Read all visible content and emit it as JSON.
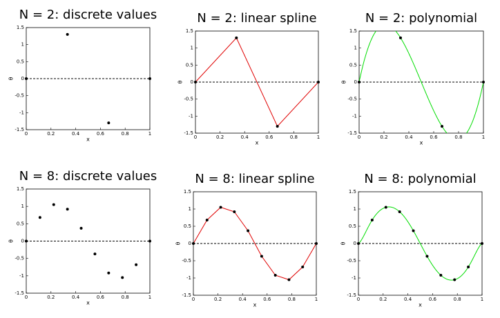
{
  "chart_data": [
    {
      "type": "scatter",
      "title": "N = 2: discrete values",
      "x": [
        0,
        0.3333,
        0.6667,
        1
      ],
      "values": [
        0,
        1.3,
        -1.3,
        0
      ],
      "color": "#000000",
      "xlim": [
        0,
        1
      ],
      "ylim": [
        -1.5,
        1.5
      ],
      "xticks": [
        0,
        0.2,
        0.4,
        0.6,
        0.8,
        1
      ],
      "yticks": [
        -1.5,
        -1,
        -0.5,
        0,
        0.5,
        1,
        1.5
      ],
      "xlabel": "x",
      "ylabel": "θ",
      "hline": 0
    },
    {
      "type": "spline",
      "title": "N = 2: linear spline",
      "x": [
        0,
        0.3333,
        0.6667,
        1
      ],
      "values": [
        0,
        1.3,
        -1.3,
        0
      ],
      "color": "#e00000",
      "xlim": [
        0,
        1
      ],
      "ylim": [
        -1.5,
        1.5
      ],
      "xticks": [
        0,
        0.2,
        0.4,
        0.6,
        0.8,
        1
      ],
      "yticks": [
        -1.5,
        -1,
        -0.5,
        0,
        0.5,
        1,
        1.5
      ],
      "xlabel": "x",
      "ylabel": "θ",
      "hline": 0
    },
    {
      "type": "polynomial",
      "title": "N = 2: polynomial",
      "x": [
        0,
        0.3333,
        0.6667,
        1
      ],
      "values": [
        0,
        1.3,
        -1.3,
        0
      ],
      "color": "#00dd00",
      "xlim": [
        0,
        1
      ],
      "ylim": [
        -1.5,
        1.5
      ],
      "xticks": [
        0,
        0.2,
        0.4,
        0.6,
        0.8,
        1
      ],
      "yticks": [
        -1.5,
        -1,
        -0.5,
        0,
        0.5,
        1,
        1.5
      ],
      "xlabel": "x",
      "ylabel": "θ",
      "hline": 0
    },
    {
      "type": "scatter",
      "title": "N = 8: discrete values",
      "x": [
        0,
        0.1111,
        0.2222,
        0.3333,
        0.4444,
        0.5556,
        0.6667,
        0.7778,
        0.8889,
        1
      ],
      "values": [
        0,
        0.68,
        1.05,
        0.92,
        0.37,
        -0.37,
        -0.92,
        -1.05,
        -0.68,
        0
      ],
      "color": "#000000",
      "xlim": [
        0,
        1
      ],
      "ylim": [
        -1.5,
        1.5
      ],
      "xticks": [
        0,
        0.2,
        0.4,
        0.6,
        0.8,
        1
      ],
      "yticks": [
        -1.5,
        -1,
        -0.5,
        0,
        0.5,
        1,
        1.5
      ],
      "xlabel": "x",
      "ylabel": "θ",
      "hline": 0
    },
    {
      "type": "spline",
      "title": "N = 8: linear spline",
      "x": [
        0,
        0.1111,
        0.2222,
        0.3333,
        0.4444,
        0.5556,
        0.6667,
        0.7778,
        0.8889,
        1
      ],
      "values": [
        0,
        0.68,
        1.05,
        0.92,
        0.37,
        -0.37,
        -0.92,
        -1.05,
        -0.68,
        0
      ],
      "color": "#e00000",
      "xlim": [
        0,
        1
      ],
      "ylim": [
        -1.5,
        1.5
      ],
      "xticks": [
        0,
        0.2,
        0.4,
        0.6,
        0.8,
        1
      ],
      "yticks": [
        -1.5,
        -1,
        -0.5,
        0,
        0.5,
        1,
        1.5
      ],
      "xlabel": "x",
      "ylabel": "θ",
      "hline": 0
    },
    {
      "type": "polynomial",
      "title": "N = 8: polynomial",
      "x": [
        0,
        0.1111,
        0.2222,
        0.3333,
        0.4444,
        0.5556,
        0.6667,
        0.7778,
        0.8889,
        1
      ],
      "values": [
        0,
        0.68,
        1.05,
        0.92,
        0.37,
        -0.37,
        -0.92,
        -1.05,
        -0.68,
        0
      ],
      "color": "#00dd00",
      "xlim": [
        0,
        1
      ],
      "ylim": [
        -1.5,
        1.5
      ],
      "xticks": [
        0,
        0.2,
        0.4,
        0.6,
        0.8,
        1
      ],
      "yticks": [
        -1.5,
        -1,
        -0.5,
        0,
        0.5,
        1,
        1.5
      ],
      "xlabel": "x",
      "ylabel": "θ",
      "hline": 0
    }
  ]
}
